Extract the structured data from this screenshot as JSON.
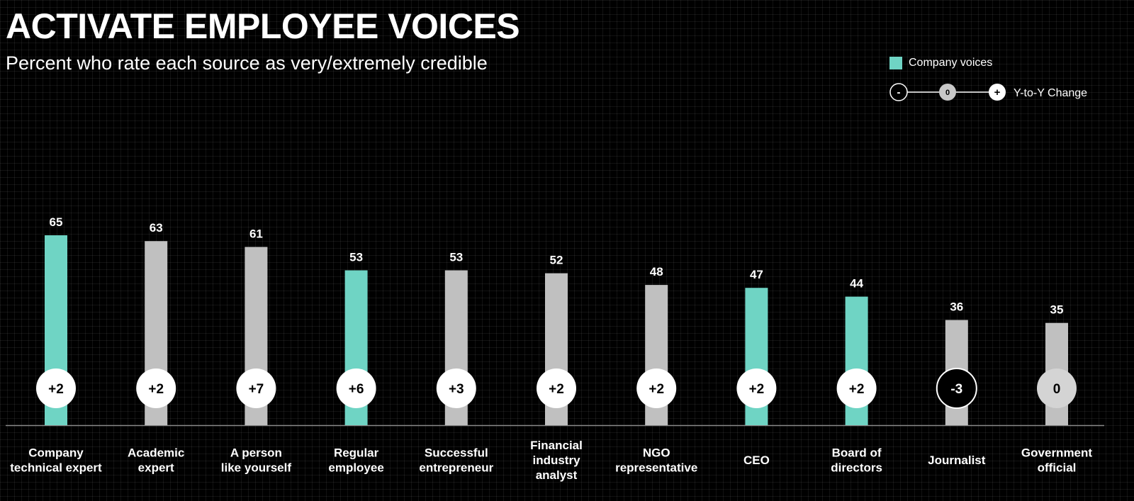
{
  "title": "ACTIVATE EMPLOYEE VOICES",
  "subtitle": "Percent who rate each source as very/extremely credible",
  "colors": {
    "company": "#6fd4c4",
    "other": "#c0c0c0",
    "background": "#000000"
  },
  "legend": {
    "company_label": "Company voices",
    "change_label": "Y-to-Y Change",
    "minus_symbol": "-",
    "zero_symbol": "0",
    "plus_symbol": "+"
  },
  "chart_data": {
    "type": "bar",
    "title": "ACTIVATE EMPLOYEE VOICES",
    "subtitle": "Percent who rate each source as very/extremely credible",
    "categories": [
      [
        "Company",
        "technical expert"
      ],
      [
        "Academic",
        "expert"
      ],
      [
        "A person",
        "like yourself"
      ],
      [
        "Regular",
        "employee"
      ],
      [
        "Successful",
        "entrepreneur"
      ],
      [
        "Financial",
        "industry",
        "analyst"
      ],
      [
        "NGO",
        "representative"
      ],
      [
        "CEO"
      ],
      [
        "Board of",
        "directors"
      ],
      [
        "Journalist"
      ],
      [
        "Government",
        "official"
      ]
    ],
    "values": [
      65,
      63,
      61,
      53,
      53,
      52,
      48,
      47,
      44,
      36,
      35
    ],
    "changes": [
      "+2",
      "+2",
      "+7",
      "+6",
      "+3",
      "+2",
      "+2",
      "+2",
      "+2",
      "-3",
      "0"
    ],
    "company_voice": [
      true,
      false,
      false,
      true,
      false,
      false,
      false,
      true,
      true,
      false,
      false
    ],
    "ylim": [
      0,
      65
    ],
    "legend_position": "top-right",
    "grid": true
  }
}
